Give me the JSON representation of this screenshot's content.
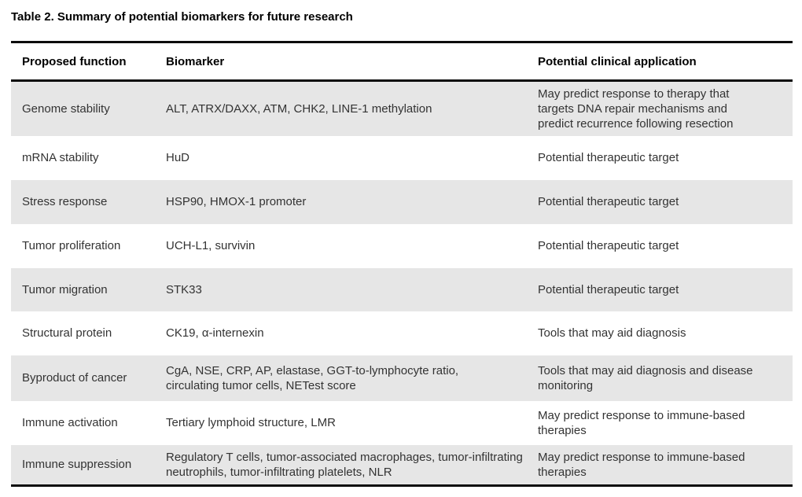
{
  "title": "Table 2. Summary of potential biomarkers for future research",
  "colors": {
    "row_shade": "#e6e6e6",
    "rule": "#0c0c0c",
    "body_text": "#333333",
    "header_text": "#000000"
  },
  "table": {
    "columns": [
      "Proposed function",
      "Biomarker",
      "Potential clinical application"
    ],
    "rows": [
      {
        "function": "Genome stability",
        "biomarker": "ALT, ATRX/DAXX, ATM, CHK2, LINE-1 methylation",
        "application": "May predict response to therapy that\ntargets DNA repair mechanisms and\npredict recurrence following resection"
      },
      {
        "function": "mRNA stability",
        "biomarker": "HuD",
        "application": "Potential therapeutic target"
      },
      {
        "function": "Stress response",
        "biomarker": "HSP90, HMOX-1 promoter",
        "application": "Potential therapeutic target"
      },
      {
        "function": "Tumor proliferation",
        "biomarker": "UCH-L1, survivin",
        "application": "Potential therapeutic target"
      },
      {
        "function": "Tumor migration",
        "biomarker": "STK33",
        "application": "Potential therapeutic target"
      },
      {
        "function": "Structural protein",
        "biomarker": "CK19, α-internexin",
        "application": "Tools that may aid diagnosis"
      },
      {
        "function": "Byproduct of cancer",
        "biomarker": "CgA, NSE, CRP, AP, elastase, GGT-to-lymphocyte ratio,\ncirculating tumor cells, NETest score",
        "application": "Tools that may aid diagnosis and disease\nmonitoring"
      },
      {
        "function": "Immune activation",
        "biomarker": "Tertiary lymphoid structure, LMR",
        "application": "May predict response to immune-based\ntherapies"
      },
      {
        "function": "Immune suppression",
        "biomarker": "Regulatory T cells, tumor-associated macrophages, tumor-infiltrating neutrophils, tumor-infiltrating platelets, NLR",
        "application": "May predict response to immune-based\ntherapies"
      }
    ]
  }
}
